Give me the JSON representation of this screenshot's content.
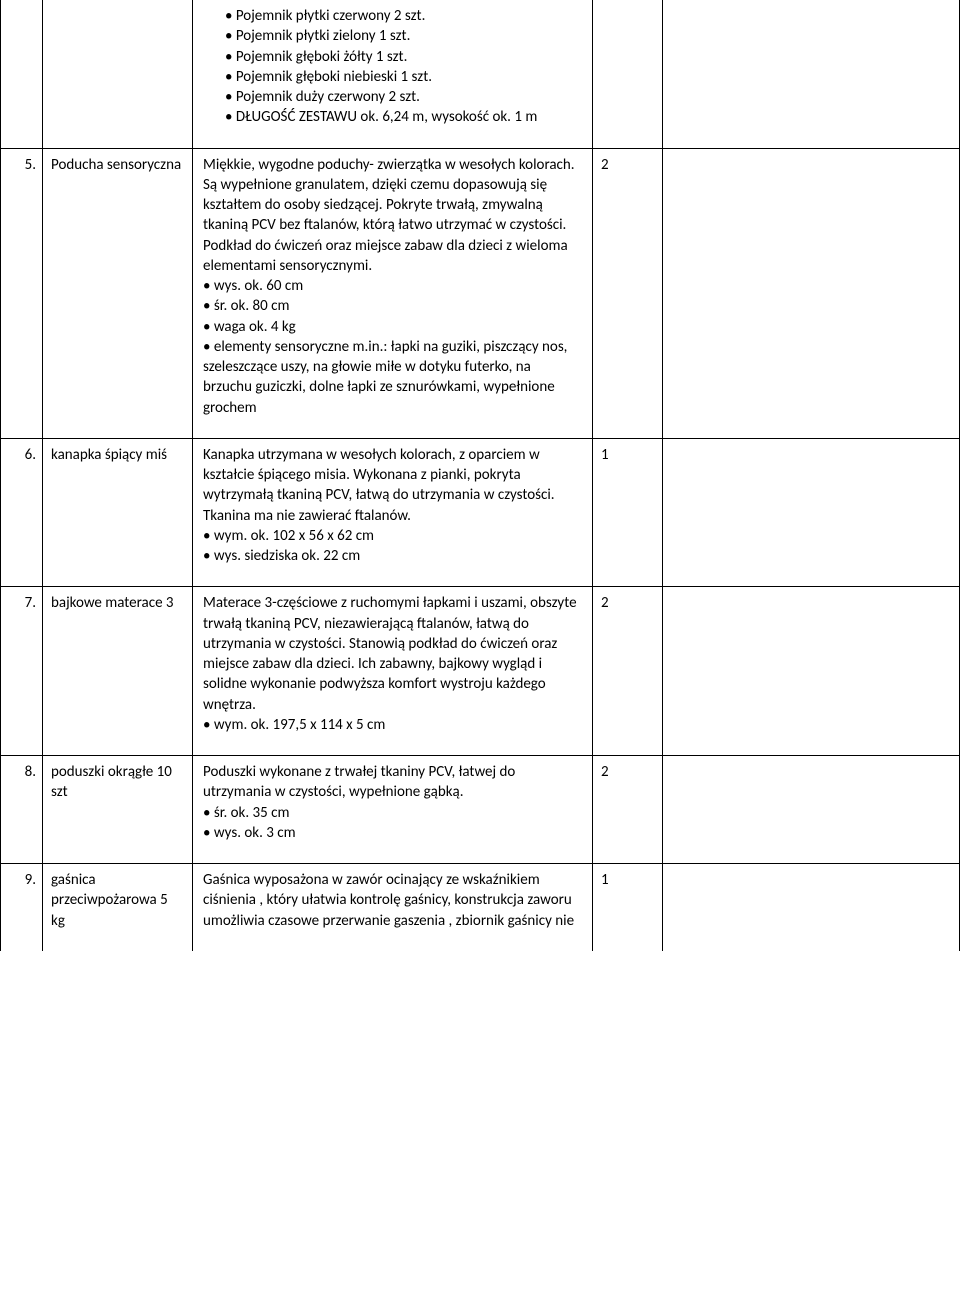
{
  "rows": [
    {
      "num": "",
      "name": "",
      "qty": "",
      "topOpen": true,
      "desc_lines": [
        {
          "text": "• Pojemnik płytki czerwony 2 szt.",
          "indent": "indent1"
        },
        {
          "text": "•  Pojemnik płytki zielony 1 szt.",
          "indent": "indent1"
        },
        {
          "text": "• Pojemnik głęboki żółty 1 szt.",
          "indent": "indent1"
        },
        {
          "text": "• Pojemnik głęboki niebieski 1 szt.",
          "indent": "indent1"
        },
        {
          "text": "• Pojemnik duży czerwony 2 szt.",
          "indent": "indent1"
        },
        {
          "text": "• DŁUGOŚĆ ZESTAWU ok. 6,24 m, wysokość ok. 1 m",
          "indent": "indent1"
        }
      ]
    },
    {
      "num": "5.",
      "name": "Poducha sensoryczna",
      "qty": "2",
      "desc_lines": [
        {
          "text": "Miękkie, wygodne poduchy- zwierzątka w wesołych kolorach. Są wypełnione granulatem, dzięki czemu dopasowują się kształtem do osoby siedzącej. Pokryte trwałą, zmywalną tkaniną PCV bez ftalanów, którą łatwo utrzymać w czystości. Podkład do ćwiczeń oraz miejsce zabaw dla dzieci z wieloma elementami sensorycznymi.",
          "indent": ""
        },
        {
          "text": "• wys. ok. 60 cm",
          "indent": ""
        },
        {
          "text": "• śr. ok. 80 cm",
          "indent": ""
        },
        {
          "text": "• waga ok. 4 kg",
          "indent": ""
        },
        {
          "text": "• elementy sensoryczne m.in.: łapki na guziki, piszczący nos, szeleszczące uszy, na głowie miłe w dotyku futerko, na brzuchu guziczki, dolne łapki ze sznurówkami, wypełnione grochem",
          "indent": ""
        }
      ]
    },
    {
      "num": "6.",
      "name": "kanapka śpiący miś",
      "qty": "1",
      "desc_lines": [
        {
          "text": "Kanapka utrzymana w wesołych kolorach, z oparciem w kształcie śpiącego misia. Wykonana z pianki, pokryta wytrzymałą tkaniną PCV, łatwą do utrzymania w czystości. Tkanina ma nie zawierać ftalanów.",
          "indent": ""
        },
        {
          "text": "• wym. ok. 102 x 56 x 62 cm",
          "indent": ""
        },
        {
          "text": "• wys. siedziska ok. 22 cm",
          "indent": ""
        }
      ]
    },
    {
      "num": "7.",
      "name": "bajkowe materace 3",
      "qty": "2",
      "desc_lines": [
        {
          "text": "Materace 3-częściowe z ruchomymi łapkami i uszami, obszyte trwałą tkaniną PCV, niezawierającą ftalanów, łatwą do utrzymania w czystości. Stanowią podkład do ćwiczeń oraz miejsce zabaw dla dzieci. Ich zabawny, bajkowy wygląd i solidne wykonanie podwyższa komfort wystroju każdego wnętrza.",
          "indent": ""
        },
        {
          "text": "• wym. ok. 197,5 x 114 x 5 cm",
          "indent": ""
        }
      ]
    },
    {
      "num": "8.",
      "name": "poduszki okrągłe 10 szt",
      "qty": "2",
      "desc_lines": [
        {
          "text": "Poduszki wykonane z trwałej tkaniny PCV, łatwej do utrzymania w czystości, wypełnione gąbką.",
          "indent": ""
        },
        {
          "text": "• śr. ok. 35 cm",
          "indent": ""
        },
        {
          "text": "• wys. ok. 3 cm",
          "indent": ""
        }
      ]
    },
    {
      "num": "9.",
      "name": "gaśnica przeciwpożarowa 5 kg",
      "qty": "1",
      "bottomOpen": true,
      "desc_lines": [
        {
          "text": "Gaśnica wyposażona w zawór ocinający ze wskaźnikiem ciśnienia , który ułatwia kontrolę gaśnicy, konstrukcja zaworu umożliwia czasowe przerwanie gaszenia , zbiornik gaśnicy nie",
          "indent": ""
        }
      ]
    }
  ]
}
